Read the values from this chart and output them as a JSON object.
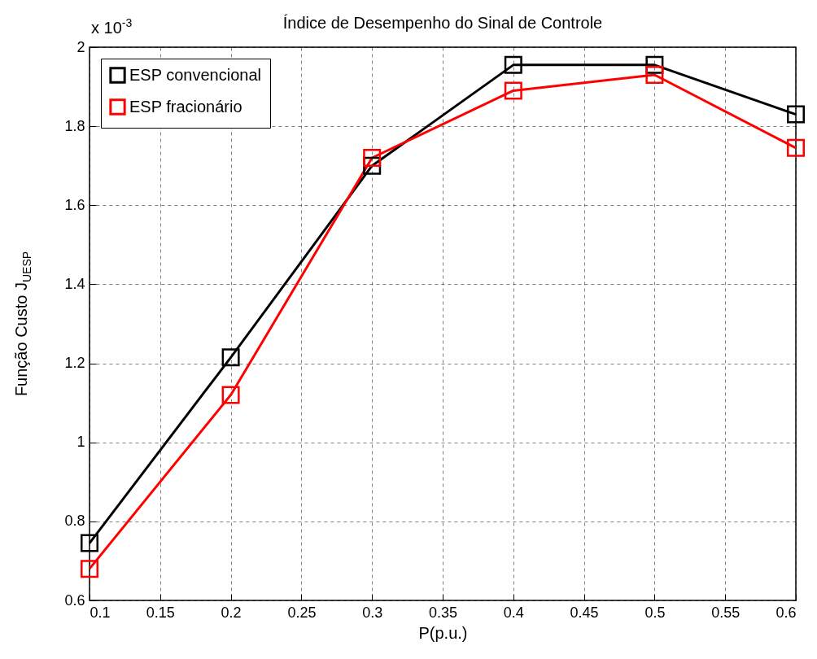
{
  "chart_data": {
    "type": "line",
    "title": "Índice de Desempenho do Sinal de Controle",
    "xlabel": "P(p.u.)",
    "ylabel": "Função Custo J$_{UESP}$",
    "annotations": [
      "x 10$^{-3}$"
    ],
    "x": [
      0.1,
      0.2,
      0.3,
      0.4,
      0.5,
      0.6
    ],
    "series": [
      {
        "name": "ESP convencional",
        "color": "#000000",
        "values": [
          0.745,
          1.215,
          1.7,
          1.955,
          1.955,
          1.83
        ]
      },
      {
        "name": "ESP fracionário",
        "color": "#ff0000",
        "values": [
          0.68,
          1.12,
          1.72,
          1.89,
          1.93,
          1.745
        ]
      }
    ],
    "xlim": [
      0.1,
      0.6
    ],
    "xticks": [
      0.1,
      0.15,
      0.2,
      0.25,
      0.3,
      0.35,
      0.4,
      0.45,
      0.5,
      0.55,
      0.6
    ],
    "ylim": [
      0.6,
      2
    ],
    "yticks": [
      0.6,
      0.8,
      1,
      1.2,
      1.4,
      1.6,
      1.8,
      2
    ],
    "grid": true,
    "legend": "top left",
    "marker": "square",
    "line_style": "solid"
  }
}
